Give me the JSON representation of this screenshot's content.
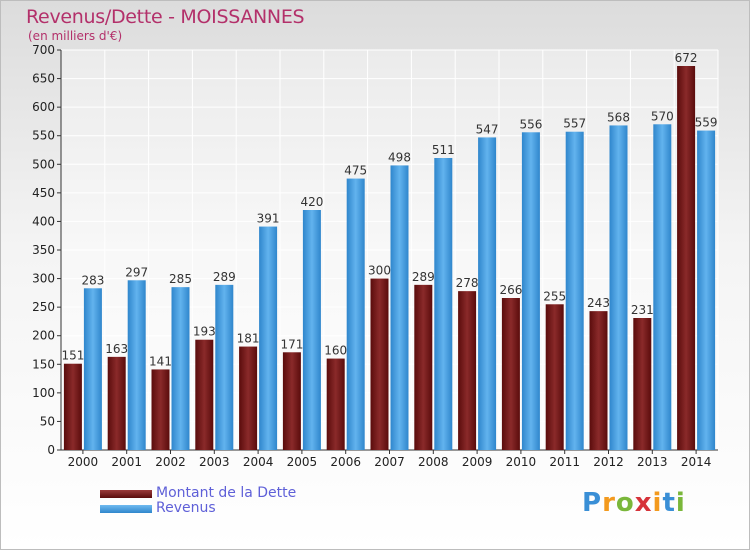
{
  "chart_data": {
    "type": "bar",
    "title": "Revenus/Dette - MOISSANNES",
    "subtitle": "(en milliers d'€)",
    "categories": [
      "2000",
      "2001",
      "2002",
      "2003",
      "2004",
      "2005",
      "2006",
      "2007",
      "2008",
      "2009",
      "2010",
      "2011",
      "2012",
      "2013",
      "2014"
    ],
    "series": [
      {
        "name": "Montant de la Dette",
        "color": "#7b1e1e",
        "values": [
          151,
          163,
          141,
          193,
          181,
          171,
          160,
          300,
          289,
          278,
          266,
          255,
          243,
          231,
          672
        ]
      },
      {
        "name": "Revenus",
        "color": "#3a96dc",
        "values": [
          283,
          297,
          285,
          289,
          391,
          420,
          475,
          498,
          511,
          547,
          556,
          557,
          568,
          570,
          559
        ]
      }
    ],
    "ylim": [
      0,
      700
    ],
    "yticks": [
      0,
      50,
      100,
      150,
      200,
      250,
      300,
      350,
      400,
      450,
      500,
      550,
      600,
      650,
      700
    ],
    "grid": true,
    "legend_position": "bottom-left",
    "logo": "Proxiti"
  }
}
